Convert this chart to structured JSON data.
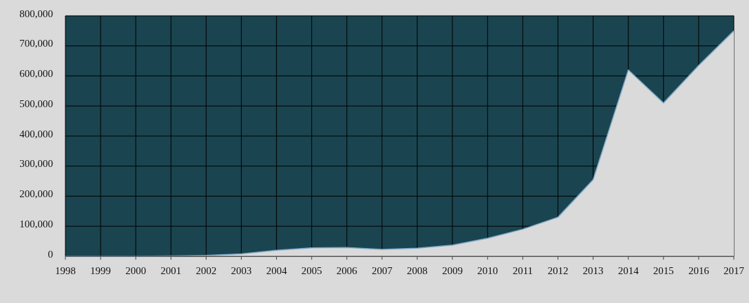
{
  "chart_data": {
    "type": "area",
    "categories": [
      "1998",
      "1999",
      "2000",
      "2001",
      "2002",
      "2003",
      "2004",
      "2005",
      "2006",
      "2007",
      "2008",
      "2009",
      "2010",
      "2011",
      "2012",
      "2013",
      "2014",
      "2015",
      "2016",
      "2017"
    ],
    "series": [
      {
        "color": "#dadada",
        "values": [
          0,
          0,
          0,
          1000,
          3000,
          8000,
          20000,
          28000,
          29000,
          23000,
          27000,
          37000,
          60000,
          90000,
          130000,
          255000,
          620000,
          510000,
          635000,
          750000
        ]
      }
    ],
    "ylim": [
      0,
      800000
    ],
    "yticks": [
      {
        "value": 0,
        "label": "0"
      },
      {
        "value": 100000,
        "label": "100,000"
      },
      {
        "value": 200000,
        "label": "200,000"
      },
      {
        "value": 300000,
        "label": "300,000"
      },
      {
        "value": 400000,
        "label": "400,000"
      },
      {
        "value": 500000,
        "label": "500,000"
      },
      {
        "value": 600000,
        "label": "600,000"
      },
      {
        "value": 700000,
        "label": "700,000"
      },
      {
        "value": 800000,
        "label": "800,000"
      }
    ],
    "grid": true
  }
}
